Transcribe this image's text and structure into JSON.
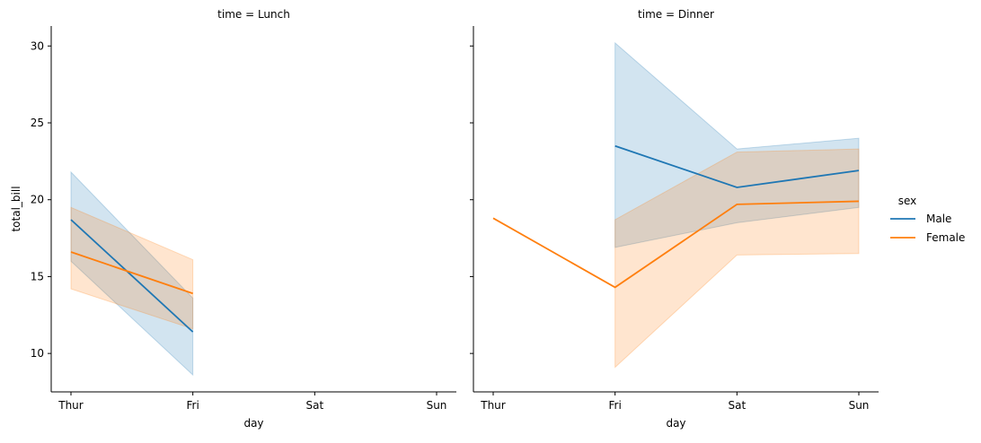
{
  "chart_data": {
    "type": "line",
    "xlabel": "day",
    "ylabel": "total_bill",
    "categories": [
      "Thur",
      "Fri",
      "Sat",
      "Sun"
    ],
    "ylim": [
      7.5,
      31.3
    ],
    "yticks": [
      10,
      15,
      20,
      25,
      30
    ],
    "grid": false,
    "legend": {
      "title": "sex",
      "placement": "right",
      "entries": [
        "Male",
        "Female"
      ]
    },
    "colors": {
      "Male": "#1f77b4",
      "Female": "#ff7f0e"
    },
    "panels": [
      {
        "title": "time = Lunch",
        "series": [
          {
            "name": "Male",
            "x": [
              "Thur",
              "Fri"
            ],
            "values": [
              18.7,
              11.4
            ],
            "ci_low": [
              16.0,
              8.6
            ],
            "ci_high": [
              21.8,
              13.6
            ]
          },
          {
            "name": "Female",
            "x": [
              "Thur",
              "Fri"
            ],
            "values": [
              16.6,
              13.9
            ],
            "ci_low": [
              14.2,
              11.6
            ],
            "ci_high": [
              19.5,
              16.1
            ]
          }
        ]
      },
      {
        "title": "time = Dinner",
        "series": [
          {
            "name": "Male",
            "x": [
              "Fri",
              "Sat",
              "Sun"
            ],
            "values": [
              23.5,
              20.8,
              21.9
            ],
            "ci_low": [
              16.9,
              18.5,
              19.5
            ],
            "ci_high": [
              30.2,
              23.3,
              24.0
            ]
          },
          {
            "name": "Female",
            "x": [
              "Thur",
              "Fri",
              "Sat",
              "Sun"
            ],
            "values": [
              18.8,
              14.3,
              19.7,
              19.9
            ],
            "ci_low": [
              null,
              9.1,
              16.4,
              16.5
            ],
            "ci_high": [
              null,
              18.7,
              23.1,
              23.3
            ]
          }
        ]
      }
    ]
  }
}
